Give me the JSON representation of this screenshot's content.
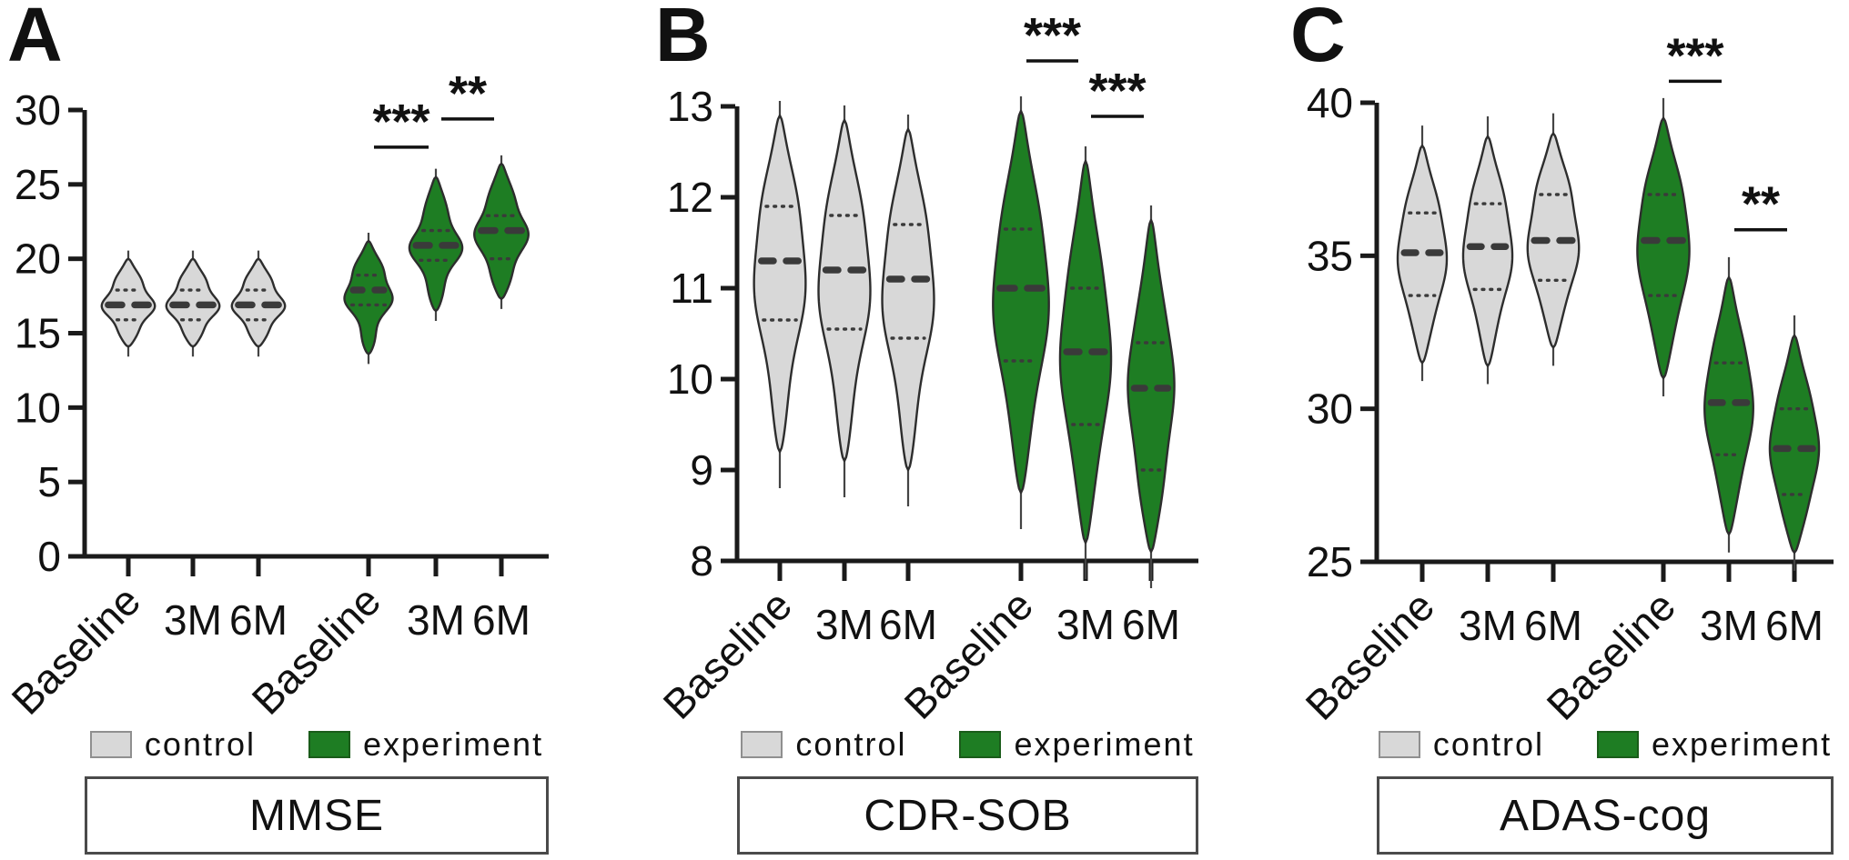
{
  "figure": {
    "background": "#ffffff",
    "type": "three-panel violin plot figure"
  },
  "chart_data": [
    {
      "panel": "A",
      "type": "violin",
      "title": "MMSE",
      "y_axis": {
        "min": 0,
        "max": 30,
        "ticks": [
          "0",
          "5",
          "10",
          "15",
          "20",
          "25",
          "30"
        ]
      },
      "categories": [
        "Baseline",
        "3M",
        "6M",
        "Baseline",
        "3M",
        "6M"
      ],
      "series_legend": [
        {
          "name": "control",
          "color": "#d8d8d8"
        },
        {
          "name": "experiment",
          "color": "#1e7d23"
        }
      ],
      "violins": [
        {
          "category": "Baseline",
          "group": "control",
          "min": 14.1,
          "q1": 15.9,
          "median": 16.9,
          "q3": 17.9,
          "max": 20.0,
          "hw": 26
        },
        {
          "category": "3M",
          "group": "control",
          "min": 14.1,
          "q1": 15.9,
          "median": 16.9,
          "q3": 17.9,
          "max": 20.0,
          "hw": 26
        },
        {
          "category": "6M",
          "group": "control",
          "min": 14.1,
          "q1": 15.9,
          "median": 16.9,
          "q3": 17.9,
          "max": 20.0,
          "hw": 26
        },
        {
          "category": "Baseline",
          "group": "experiment",
          "min": 13.6,
          "q1": 16.9,
          "median": 17.9,
          "q3": 18.9,
          "max": 21.2,
          "hw": 25
        },
        {
          "category": "3M",
          "group": "experiment",
          "min": 16.5,
          "q1": 19.9,
          "median": 20.9,
          "q3": 21.9,
          "max": 25.5,
          "hw": 26
        },
        {
          "category": "6M",
          "group": "experiment",
          "min": 17.3,
          "q1": 20.0,
          "median": 21.9,
          "q3": 22.9,
          "max": 26.4,
          "hw": 27
        }
      ],
      "significance": [
        {
          "from": 3,
          "to": 4,
          "label": "***",
          "y": 27.5
        },
        {
          "from": 4,
          "to": 5,
          "label": "**",
          "y": 29.4
        }
      ]
    },
    {
      "panel": "B",
      "type": "violin",
      "title": "CDR-SOB",
      "y_axis": {
        "min": 8,
        "max": 13,
        "ticks": [
          "8",
          "9",
          "10",
          "11",
          "12",
          "13"
        ]
      },
      "categories": [
        "Baseline",
        "3M",
        "6M",
        "Baseline",
        "3M",
        "6M"
      ],
      "series_legend": [
        {
          "name": "control",
          "color": "#d8d8d8"
        },
        {
          "name": "experiment",
          "color": "#1e7d23"
        }
      ],
      "violins": [
        {
          "category": "Baseline",
          "group": "control",
          "min": 9.2,
          "q1": 10.65,
          "median": 11.3,
          "q3": 11.9,
          "max": 12.9,
          "hw": 28
        },
        {
          "category": "3M",
          "group": "control",
          "min": 9.1,
          "q1": 10.55,
          "median": 11.2,
          "q3": 11.8,
          "max": 12.85,
          "hw": 28
        },
        {
          "category": "6M",
          "group": "control",
          "min": 9.0,
          "q1": 10.45,
          "median": 11.1,
          "q3": 11.7,
          "max": 12.75,
          "hw": 28
        },
        {
          "category": "Baseline",
          "group": "experiment",
          "min": 8.75,
          "q1": 10.2,
          "median": 11.0,
          "q3": 11.65,
          "max": 12.95,
          "hw": 30
        },
        {
          "category": "3M",
          "group": "experiment",
          "min": 8.2,
          "q1": 9.5,
          "median": 10.3,
          "q3": 11.0,
          "max": 12.4,
          "hw": 27
        },
        {
          "category": "6M",
          "group": "experiment",
          "min": 8.1,
          "q1": 9.0,
          "median": 9.9,
          "q3": 10.4,
          "max": 11.75,
          "hw": 25
        }
      ],
      "significance": [
        {
          "from": 3,
          "to": 4,
          "label": "***",
          "y": 13.5
        },
        {
          "from": 4,
          "to": 5,
          "label": "***",
          "y": 12.89
        }
      ]
    },
    {
      "panel": "C",
      "type": "violin",
      "title": "ADAS-cog",
      "y_axis": {
        "min": 25,
        "max": 40,
        "ticks": [
          "25",
          "30",
          "35",
          "40"
        ]
      },
      "categories": [
        "Baseline",
        "3M",
        "6M",
        "Baseline",
        "3M",
        "6M"
      ],
      "series_legend": [
        {
          "name": "control",
          "color": "#d8d8d8"
        },
        {
          "name": "experiment",
          "color": "#1e7d23"
        }
      ],
      "violins": [
        {
          "category": "Baseline",
          "group": "control",
          "min": 31.5,
          "q1": 33.7,
          "median": 35.1,
          "q3": 36.4,
          "max": 38.6,
          "hw": 26
        },
        {
          "category": "3M",
          "group": "control",
          "min": 31.4,
          "q1": 33.9,
          "median": 35.3,
          "q3": 36.7,
          "max": 38.9,
          "hw": 26
        },
        {
          "category": "6M",
          "group": "control",
          "min": 32.0,
          "q1": 34.2,
          "median": 35.5,
          "q3": 37.0,
          "max": 39.0,
          "hw": 27
        },
        {
          "category": "Baseline",
          "group": "experiment",
          "min": 31.0,
          "q1": 33.7,
          "median": 35.5,
          "q3": 37.0,
          "max": 39.5,
          "hw": 28
        },
        {
          "category": "3M",
          "group": "experiment",
          "min": 25.9,
          "q1": 28.5,
          "median": 30.2,
          "q3": 31.5,
          "max": 34.3,
          "hw": 26
        },
        {
          "category": "6M",
          "group": "experiment",
          "min": 25.3,
          "q1": 27.2,
          "median": 28.7,
          "q3": 30.0,
          "max": 32.4,
          "hw": 26
        }
      ],
      "significance": [
        {
          "from": 3,
          "to": 4,
          "label": "***",
          "y": 40.7
        },
        {
          "from": 4,
          "to": 5,
          "label": "**",
          "y": 35.85
        }
      ]
    }
  ]
}
